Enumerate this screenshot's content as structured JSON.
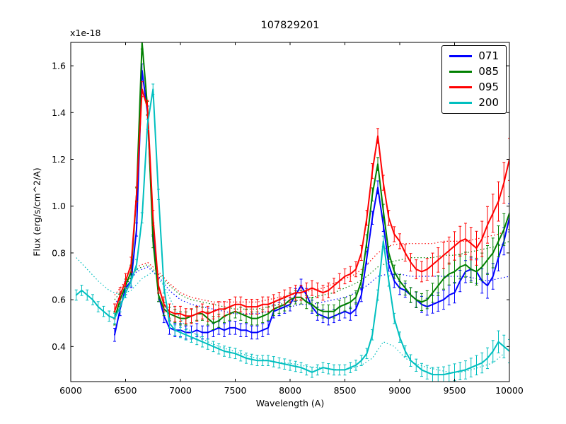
{
  "figure": {
    "title": "107829201",
    "xlabel": "Wavelength (A)",
    "ylabel": "Flux (erg/s/cm^2/A)",
    "offset_text": "x1e-18"
  },
  "chart_data": {
    "type": "line",
    "title": "107829201",
    "xlabel": "Wavelength (A)",
    "ylabel": "Flux (erg/s/cm^2/A)",
    "y_offset_text": "x1e-18",
    "xlim": [
      6000,
      10000
    ],
    "ylim": [
      0.25,
      1.7
    ],
    "xticks": [
      6000,
      6500,
      7000,
      7500,
      8000,
      8500,
      9000,
      9500,
      10000
    ],
    "yticks": [
      0.4,
      0.6,
      0.8,
      1.0,
      1.2,
      1.4,
      1.6
    ],
    "grid": false,
    "legend": {
      "position": "upper right",
      "entries": [
        "071",
        "085",
        "095",
        "200"
      ]
    },
    "series": [
      {
        "name": "071",
        "label": "071",
        "color": "#0000ff",
        "style": "solid",
        "err_base": 0.028,
        "err_end": 0.06,
        "x_start": 6400,
        "x_step": 50,
        "y": [
          0.45,
          0.56,
          0.65,
          0.68,
          0.9,
          1.58,
          1.4,
          0.9,
          0.62,
          0.53,
          0.48,
          0.47,
          0.47,
          0.46,
          0.46,
          0.47,
          0.46,
          0.46,
          0.47,
          0.48,
          0.47,
          0.48,
          0.48,
          0.47,
          0.47,
          0.46,
          0.46,
          0.47,
          0.48,
          0.55,
          0.56,
          0.57,
          0.58,
          0.62,
          0.66,
          0.62,
          0.57,
          0.54,
          0.53,
          0.52,
          0.53,
          0.54,
          0.55,
          0.54,
          0.56,
          0.62,
          0.78,
          0.95,
          1.08,
          0.92,
          0.75,
          0.68,
          0.65,
          0.64,
          0.62,
          0.6,
          0.58,
          0.57,
          0.58,
          0.59,
          0.6,
          0.62,
          0.63,
          0.68,
          0.72,
          0.73,
          0.72,
          0.68,
          0.66,
          0.7,
          0.78,
          0.85,
          0.95
        ]
      },
      {
        "name": "085",
        "label": "085",
        "color": "#008000",
        "style": "solid",
        "err_base": 0.028,
        "err_end": 0.07,
        "x_start": 6400,
        "x_step": 50,
        "y": [
          0.52,
          0.6,
          0.66,
          0.72,
          1.05,
          1.7,
          1.42,
          0.85,
          0.62,
          0.56,
          0.54,
          0.53,
          0.52,
          0.52,
          0.53,
          0.54,
          0.54,
          0.52,
          0.5,
          0.51,
          0.53,
          0.54,
          0.55,
          0.54,
          0.53,
          0.52,
          0.52,
          0.53,
          0.54,
          0.56,
          0.57,
          0.58,
          0.6,
          0.61,
          0.61,
          0.59,
          0.58,
          0.56,
          0.55,
          0.55,
          0.55,
          0.57,
          0.58,
          0.59,
          0.61,
          0.68,
          0.85,
          1.05,
          1.18,
          0.98,
          0.8,
          0.72,
          0.68,
          0.65,
          0.62,
          0.6,
          0.59,
          0.6,
          0.63,
          0.66,
          0.69,
          0.71,
          0.72,
          0.74,
          0.75,
          0.73,
          0.72,
          0.74,
          0.77,
          0.8,
          0.85,
          0.9,
          0.97
        ]
      },
      {
        "name": "095",
        "label": "095",
        "color": "#ff0000",
        "style": "solid",
        "err_base": 0.032,
        "err_end": 0.09,
        "x_start": 6400,
        "x_step": 50,
        "y": [
          0.55,
          0.62,
          0.68,
          0.75,
          1.05,
          1.5,
          1.42,
          0.95,
          0.66,
          0.58,
          0.55,
          0.54,
          0.54,
          0.53,
          0.53,
          0.54,
          0.55,
          0.54,
          0.55,
          0.56,
          0.56,
          0.57,
          0.58,
          0.58,
          0.57,
          0.57,
          0.57,
          0.58,
          0.58,
          0.59,
          0.6,
          0.61,
          0.62,
          0.63,
          0.63,
          0.64,
          0.65,
          0.64,
          0.63,
          0.64,
          0.66,
          0.68,
          0.7,
          0.71,
          0.73,
          0.8,
          0.95,
          1.15,
          1.3,
          1.1,
          0.95,
          0.88,
          0.85,
          0.8,
          0.76,
          0.73,
          0.72,
          0.73,
          0.75,
          0.77,
          0.79,
          0.81,
          0.83,
          0.85,
          0.86,
          0.84,
          0.82,
          0.86,
          0.92,
          0.97,
          1.02,
          1.1,
          1.2
        ]
      },
      {
        "name": "200",
        "label": "200",
        "color": "#00bfbf",
        "style": "solid",
        "err_base": 0.022,
        "err_end": 0.05,
        "x_start": 6050,
        "x_step": 50,
        "y": [
          0.62,
          0.64,
          0.62,
          0.6,
          0.57,
          0.55,
          0.53,
          0.52,
          0.57,
          0.63,
          0.68,
          0.75,
          0.95,
          1.35,
          1.5,
          1.05,
          0.65,
          0.5,
          0.47,
          0.46,
          0.45,
          0.44,
          0.43,
          0.42,
          0.41,
          0.4,
          0.39,
          0.38,
          0.375,
          0.37,
          0.36,
          0.35,
          0.345,
          0.34,
          0.34,
          0.34,
          0.335,
          0.33,
          0.325,
          0.32,
          0.315,
          0.31,
          0.3,
          0.29,
          0.3,
          0.31,
          0.305,
          0.3,
          0.3,
          0.3,
          0.31,
          0.32,
          0.34,
          0.37,
          0.45,
          0.62,
          0.85,
          0.68,
          0.52,
          0.44,
          0.38,
          0.34,
          0.32,
          0.3,
          0.29,
          0.28,
          0.28,
          0.28,
          0.285,
          0.29,
          0.295,
          0.3,
          0.31,
          0.32,
          0.33,
          0.35,
          0.38,
          0.42,
          0.4,
          0.38
        ]
      },
      {
        "name": "071-model",
        "label": "071 model",
        "color": "#0000ff",
        "style": "dotted",
        "x_start": 6400,
        "x_step": 100,
        "y": [
          0.58,
          0.65,
          0.72,
          0.74,
          0.7,
          0.64,
          0.6,
          0.58,
          0.57,
          0.56,
          0.55,
          0.54,
          0.54,
          0.54,
          0.55,
          0.56,
          0.57,
          0.58,
          0.58,
          0.59,
          0.6,
          0.61,
          0.63,
          0.66,
          0.7,
          0.71,
          0.71,
          0.7,
          0.7,
          0.7,
          0.7,
          0.7,
          0.7,
          0.69,
          0.68,
          0.69,
          0.7
        ]
      },
      {
        "name": "085-model",
        "label": "085 model",
        "color": "#008000",
        "style": "dotted",
        "x_start": 6400,
        "x_step": 100,
        "y": [
          0.6,
          0.66,
          0.73,
          0.75,
          0.71,
          0.66,
          0.62,
          0.6,
          0.59,
          0.58,
          0.57,
          0.56,
          0.56,
          0.56,
          0.57,
          0.58,
          0.59,
          0.6,
          0.61,
          0.62,
          0.63,
          0.65,
          0.67,
          0.7,
          0.74,
          0.76,
          0.77,
          0.78,
          0.78,
          0.78,
          0.79,
          0.79,
          0.8,
          0.81,
          0.82,
          0.83,
          0.85
        ]
      },
      {
        "name": "095-model",
        "label": "095 model",
        "color": "#ff0000",
        "style": "dotted",
        "x_start": 6400,
        "x_step": 100,
        "y": [
          0.62,
          0.68,
          0.74,
          0.76,
          0.72,
          0.67,
          0.63,
          0.61,
          0.6,
          0.59,
          0.59,
          0.59,
          0.59,
          0.59,
          0.6,
          0.61,
          0.62,
          0.63,
          0.64,
          0.65,
          0.67,
          0.69,
          0.71,
          0.75,
          0.8,
          0.83,
          0.84,
          0.84,
          0.84,
          0.84,
          0.85,
          0.85,
          0.85,
          0.86,
          0.87,
          0.88,
          0.9
        ]
      },
      {
        "name": "200-model",
        "label": "200 model",
        "color": "#00bfbf",
        "style": "dotted",
        "x_start": 6050,
        "x_step": 100,
        "y": [
          0.78,
          0.73,
          0.68,
          0.64,
          0.62,
          0.64,
          0.69,
          0.72,
          0.66,
          0.56,
          0.48,
          0.45,
          0.42,
          0.4,
          0.385,
          0.37,
          0.355,
          0.345,
          0.335,
          0.33,
          0.325,
          0.315,
          0.31,
          0.305,
          0.3,
          0.305,
          0.32,
          0.35,
          0.42,
          0.4,
          0.35,
          0.325,
          0.31,
          0.3,
          0.29,
          0.29,
          0.3,
          0.315,
          0.33,
          0.37
        ]
      }
    ]
  }
}
